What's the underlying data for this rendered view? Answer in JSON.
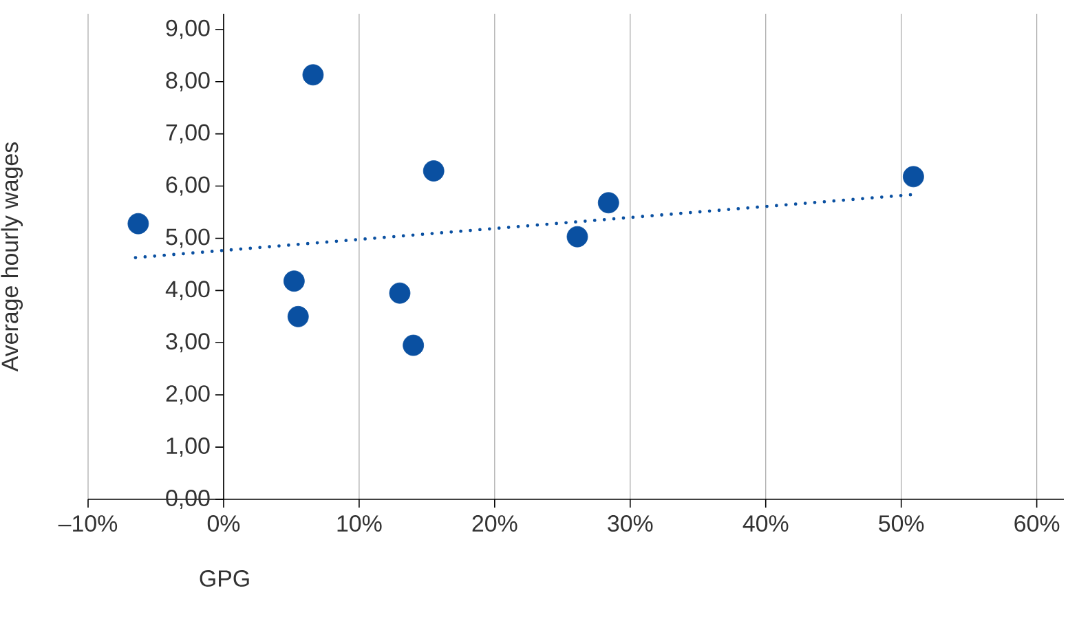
{
  "chart_data": {
    "type": "scatter",
    "xlabel": "GPG",
    "ylabel": "Average hourly wages",
    "xlim": [
      -10,
      62
    ],
    "ylim": [
      0,
      9.3
    ],
    "xticks": [
      {
        "value": -10,
        "label": "–10%"
      },
      {
        "value": 0,
        "label": "0%"
      },
      {
        "value": 10,
        "label": "10%"
      },
      {
        "value": 20,
        "label": "20%"
      },
      {
        "value": 30,
        "label": "30%"
      },
      {
        "value": 40,
        "label": "40%"
      },
      {
        "value": 50,
        "label": "50%"
      },
      {
        "value": 60,
        "label": "60%"
      }
    ],
    "yticks": [
      {
        "value": 0,
        "label": "0,00"
      },
      {
        "value": 1,
        "label": "1,00"
      },
      {
        "value": 2,
        "label": "2,00"
      },
      {
        "value": 3,
        "label": "3,00"
      },
      {
        "value": 4,
        "label": "4,00"
      },
      {
        "value": 5,
        "label": "5,00"
      },
      {
        "value": 6,
        "label": "6,00"
      },
      {
        "value": 7,
        "label": "7,00"
      },
      {
        "value": 8,
        "label": "8,00"
      },
      {
        "value": 9,
        "label": "9,00"
      }
    ],
    "grid": "x",
    "series": [
      {
        "type": "scatter",
        "marker": "circle",
        "color": "#0a50a1",
        "x": [
          -6.3,
          6.6,
          5.2,
          5.5,
          13.0,
          14.0,
          15.5,
          26.1,
          28.4,
          50.9
        ],
        "values": [
          5.28,
          8.13,
          4.18,
          3.5,
          3.95,
          2.95,
          6.29,
          5.03,
          5.68,
          6.18
        ]
      },
      {
        "type": "line",
        "marker": "none",
        "line_style": "dotted",
        "color": "#0a50a1",
        "x": [
          -6.5,
          51
        ],
        "values": [
          4.63,
          5.84
        ]
      }
    ]
  }
}
